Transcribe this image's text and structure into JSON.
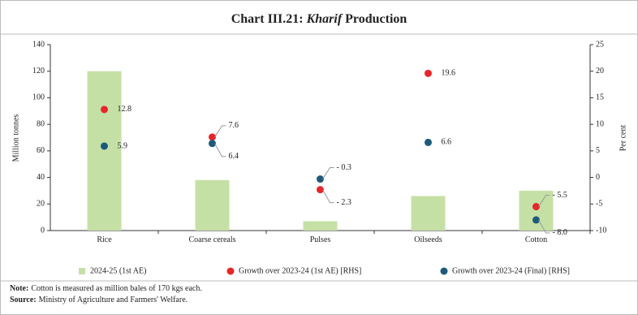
{
  "chart_data": {
    "type": "bar_dot",
    "title_parts": [
      "Chart III.21:",
      "Kharif",
      "Production"
    ],
    "categories": [
      "Rice",
      "Coarse cereals",
      "Pulses",
      "Oilseeds",
      "Cotton"
    ],
    "ylabel": "Million tonnes",
    "y2label": "Per cent",
    "ylim": [
      0,
      140
    ],
    "yticks": [
      0,
      20,
      40,
      60,
      80,
      100,
      120,
      140
    ],
    "y2lim": [
      -10,
      25
    ],
    "y2ticks": [
      -10,
      -5,
      0,
      5,
      10,
      15,
      20,
      25
    ],
    "series": [
      {
        "name": "2024-25 (1st AE)",
        "color": "#c5e0a5",
        "kind": "bar",
        "values": [
          120,
          38,
          7,
          26,
          30
        ]
      },
      {
        "name": "Growth over 2023-24 (1st AE) [RHS]",
        "color": "#e8262a",
        "kind": "dot",
        "axis": "y2",
        "values": [
          12.8,
          7.6,
          -2.3,
          19.6,
          -5.5
        ],
        "value_labels": [
          "12.8",
          "7.6",
          "- 2.3",
          "19.6",
          "- 5.5"
        ]
      },
      {
        "name": "Growth over 2023-24 (Final) [RHS]",
        "color": "#1d5a7a",
        "kind": "dot",
        "axis": "y2",
        "values": [
          5.9,
          6.4,
          -0.3,
          6.6,
          -8.0
        ],
        "value_labels": [
          "5.9",
          "6.4",
          "- 0.3",
          "6.6",
          "- 8.0"
        ]
      }
    ],
    "notes": [
      {
        "label": "Note:",
        "text": "Cotton is measured as million bales of 170 kgs each."
      },
      {
        "label": "Source:",
        "text": "Ministry of Agriculture and Farmers' Welfare."
      }
    ]
  }
}
